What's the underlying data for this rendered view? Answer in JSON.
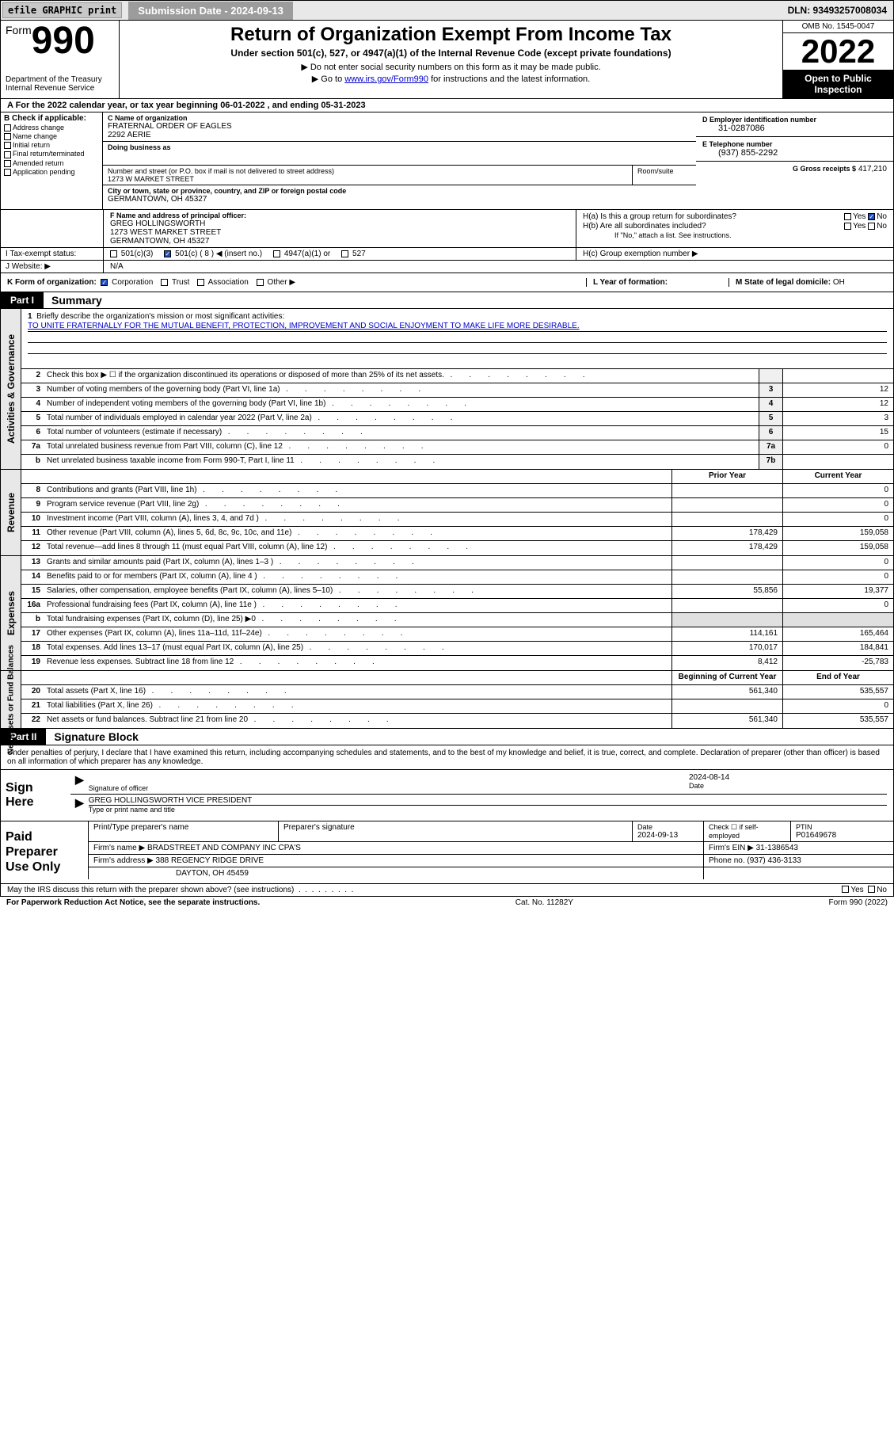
{
  "topbar": {
    "efile_btn": "efile GRAPHIC print",
    "submission_label": "Submission Date - 2024-09-13",
    "dln": "DLN: 93493257008034"
  },
  "header": {
    "form_prefix": "Form",
    "form_number": "990",
    "dept": "Department of the Treasury\nInternal Revenue Service",
    "title": "Return of Organization Exempt From Income Tax",
    "sub1": "Under section 501(c), 527, or 4947(a)(1) of the Internal Revenue Code (except private foundations)",
    "sub2": "▶ Do not enter social security numbers on this form as it may be made public.",
    "sub3_pre": "▶ Go to ",
    "sub3_link": "www.irs.gov/Form990",
    "sub3_post": " for instructions and the latest information.",
    "omb": "OMB No. 1545-0047",
    "year": "2022",
    "open_public": "Open to Public Inspection"
  },
  "period": {
    "text": "A For the 2022 calendar year, or tax year beginning 06-01-2022    , and ending 05-31-2023"
  },
  "block_b": {
    "hdr": "B Check if applicable:",
    "items": [
      "Address change",
      "Name change",
      "Initial return",
      "Final return/terminated",
      "Amended return",
      "Application pending"
    ]
  },
  "block_c": {
    "name_lbl": "C Name of organization",
    "name": "FRATERNAL ORDER OF EAGLES",
    "name2": "2292 AERIE",
    "dba_lbl": "Doing business as",
    "dba": "",
    "addr_lbl": "Number and street (or P.O. box if mail is not delivered to street address)",
    "addr": "1273 W MARKET STREET",
    "suite_lbl": "Room/suite",
    "city_lbl": "City or town, state or province, country, and ZIP or foreign postal code",
    "city": "GERMANTOWN, OH  45327"
  },
  "block_d": {
    "ein_lbl": "D Employer identification number",
    "ein": "31-0287086",
    "phone_lbl": "E Telephone number",
    "phone": "(937) 855-2292",
    "gross_lbl": "G Gross receipts $",
    "gross": "417,210"
  },
  "block_f": {
    "lbl": "F Name and address of principal officer:",
    "name": "GREG HOLLINGSWORTH",
    "addr1": "1273 WEST MARKET STREET",
    "addr2": "GERMANTOWN, OH  45327"
  },
  "block_h": {
    "ha": "H(a)  Is this a group return for subordinates?",
    "ha_val": "No",
    "hb": "H(b)  Are all subordinates included?",
    "hb_note": "If \"No,\" attach a list. See instructions.",
    "hc": "H(c)  Group exemption number ▶"
  },
  "row_i": {
    "lbl": "I   Tax-exempt status:",
    "opts": [
      "501(c)(3)",
      "501(c) ( 8 ) ◀ (insert no.)",
      "4947(a)(1) or",
      "527"
    ],
    "checked_idx": 1
  },
  "row_j": {
    "lbl": "J   Website: ▶",
    "val": "N/A"
  },
  "row_k": {
    "lbl": "K Form of organization:",
    "opts": [
      "Corporation",
      "Trust",
      "Association",
      "Other ▶"
    ],
    "checked_idx": 0,
    "l_lbl": "L Year of formation:",
    "l_val": "",
    "m_lbl": "M State of legal domicile:",
    "m_val": "OH"
  },
  "part1": {
    "tag": "Part I",
    "title": "Summary"
  },
  "mission": {
    "num": "1",
    "lbl": "Briefly describe the organization's mission or most significant activities:",
    "text": "TO UNITE FRATERNALLY FOR THE MUTUAL BENEFIT, PROTECTION, IMPROVEMENT AND SOCIAL ENJOYMENT TO MAKE LIFE MORE DESIRABLE."
  },
  "governance_rows": [
    {
      "num": "2",
      "desc": "Check this box ▶ ☐  if the organization discontinued its operations or disposed of more than 25% of its net assets.",
      "box": "",
      "val": ""
    },
    {
      "num": "3",
      "desc": "Number of voting members of the governing body (Part VI, line 1a)",
      "box": "3",
      "val": "12"
    },
    {
      "num": "4",
      "desc": "Number of independent voting members of the governing body (Part VI, line 1b)",
      "box": "4",
      "val": "12"
    },
    {
      "num": "5",
      "desc": "Total number of individuals employed in calendar year 2022 (Part V, line 2a)",
      "box": "5",
      "val": "3"
    },
    {
      "num": "6",
      "desc": "Total number of volunteers (estimate if necessary)",
      "box": "6",
      "val": "15"
    },
    {
      "num": "7a",
      "desc": "Total unrelated business revenue from Part VIII, column (C), line 12",
      "box": "7a",
      "val": "0"
    },
    {
      "num": "b",
      "desc": "Net unrelated business taxable income from Form 990-T, Part I, line 11",
      "box": "7b",
      "val": ""
    }
  ],
  "rev_exp_hdr": {
    "prior": "Prior Year",
    "current": "Current Year"
  },
  "revenue_rows": [
    {
      "num": "8",
      "desc": "Contributions and grants (Part VIII, line 1h)",
      "prior": "",
      "current": "0"
    },
    {
      "num": "9",
      "desc": "Program service revenue (Part VIII, line 2g)",
      "prior": "",
      "current": "0"
    },
    {
      "num": "10",
      "desc": "Investment income (Part VIII, column (A), lines 3, 4, and 7d )",
      "prior": "",
      "current": "0"
    },
    {
      "num": "11",
      "desc": "Other revenue (Part VIII, column (A), lines 5, 6d, 8c, 9c, 10c, and 11e)",
      "prior": "178,429",
      "current": "159,058"
    },
    {
      "num": "12",
      "desc": "Total revenue—add lines 8 through 11 (must equal Part VIII, column (A), line 12)",
      "prior": "178,429",
      "current": "159,058"
    }
  ],
  "expense_rows": [
    {
      "num": "13",
      "desc": "Grants and similar amounts paid (Part IX, column (A), lines 1–3 )",
      "prior": "",
      "current": "0"
    },
    {
      "num": "14",
      "desc": "Benefits paid to or for members (Part IX, column (A), line 4 )",
      "prior": "",
      "current": "0"
    },
    {
      "num": "15",
      "desc": "Salaries, other compensation, employee benefits (Part IX, column (A), lines 5–10)",
      "prior": "55,856",
      "current": "19,377"
    },
    {
      "num": "16a",
      "desc": "Professional fundraising fees (Part IX, column (A), line 11e )",
      "prior": "",
      "current": "0"
    },
    {
      "num": "b",
      "desc": "Total fundraising expenses (Part IX, column (D), line 25) ▶0",
      "prior": "",
      "current": "",
      "noshade": true
    },
    {
      "num": "17",
      "desc": "Other expenses (Part IX, column (A), lines 11a–11d, 11f–24e)",
      "prior": "114,161",
      "current": "165,464"
    },
    {
      "num": "18",
      "desc": "Total expenses. Add lines 13–17 (must equal Part IX, column (A), line 25)",
      "prior": "170,017",
      "current": "184,841"
    },
    {
      "num": "19",
      "desc": "Revenue less expenses. Subtract line 18 from line 12",
      "prior": "8,412",
      "current": "-25,783"
    }
  ],
  "netassets_hdr": {
    "prior": "Beginning of Current Year",
    "current": "End of Year"
  },
  "netassets_rows": [
    {
      "num": "20",
      "desc": "Total assets (Part X, line 16)",
      "prior": "561,340",
      "current": "535,557"
    },
    {
      "num": "21",
      "desc": "Total liabilities (Part X, line 26)",
      "prior": "",
      "current": "0"
    },
    {
      "num": "22",
      "desc": "Net assets or fund balances. Subtract line 21 from line 20",
      "prior": "561,340",
      "current": "535,557"
    }
  ],
  "side_labels": {
    "gov": "Activities & Governance",
    "rev": "Revenue",
    "exp": "Expenses",
    "net": "Net Assets or Fund Balances"
  },
  "part2": {
    "tag": "Part II",
    "title": "Signature Block"
  },
  "sig_intro": "Under penalties of perjury, I declare that I have examined this return, including accompanying schedules and statements, and to the best of my knowledge and belief, it is true, correct, and complete. Declaration of preparer (other than officer) is based on all information of which preparer has any knowledge.",
  "sign_here": {
    "lbl": "Sign Here",
    "sig_lbl": "Signature of officer",
    "date": "2024-08-14",
    "date_lbl": "Date",
    "name": "GREG HOLLINGSWORTH  VICE PRESIDENT",
    "name_lbl": "Type or print name and title"
  },
  "preparer": {
    "lbl": "Paid Preparer Use Only",
    "col1": "Print/Type preparer's name",
    "col2": "Preparer's signature",
    "col3_lbl": "Date",
    "col3_val": "2024-09-13",
    "col4_lbl": "Check ☐ if self-employed",
    "col5_lbl": "PTIN",
    "col5_val": "P01649678",
    "firm_name_lbl": "Firm's name    ▶",
    "firm_name": "BRADSTREET AND COMPANY INC CPA'S",
    "firm_ein_lbl": "Firm's EIN ▶",
    "firm_ein": "31-1386543",
    "firm_addr_lbl": "Firm's address ▶",
    "firm_addr1": "388 REGENCY RIDGE DRIVE",
    "firm_addr2": "DAYTON, OH  45459",
    "phone_lbl": "Phone no.",
    "phone": "(937) 436-3133"
  },
  "footer": {
    "discuss": "May the IRS discuss this return with the preparer shown above? (see instructions)",
    "yes": "Yes",
    "no": "No",
    "paperwork": "For Paperwork Reduction Act Notice, see the separate instructions.",
    "cat": "Cat. No. 11282Y",
    "form": "Form 990 (2022)"
  }
}
